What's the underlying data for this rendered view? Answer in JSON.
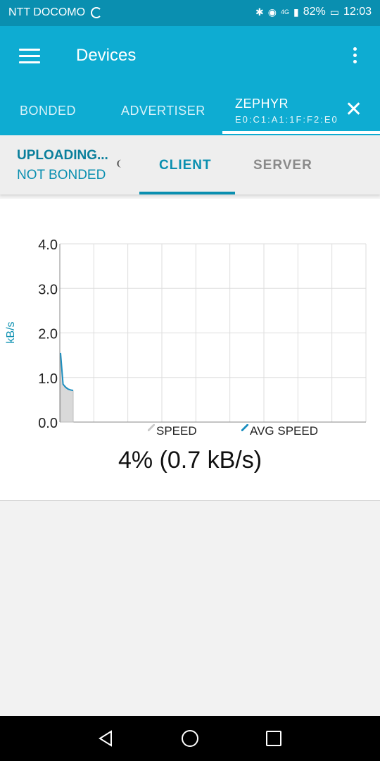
{
  "status_bar": {
    "carrier": "NTT DOCOMO",
    "network": "4G",
    "battery": "82%",
    "time": "12:03"
  },
  "app_bar": {
    "title": "Devices",
    "tabs": [
      {
        "label": "BONDED"
      },
      {
        "label": "ADVERTISER"
      },
      {
        "label": "ZEPHYR",
        "address": "E0:C1:A1:1F:F2:E0"
      }
    ]
  },
  "sub_bar": {
    "upload_status": "UPLOADING...",
    "bond_status": "NOT BONDED",
    "tabs": [
      {
        "label": "CLIENT"
      },
      {
        "label": "SERVER"
      }
    ]
  },
  "chart_data": {
    "type": "line",
    "title": "",
    "xlabel": "",
    "ylabel": "kB/s",
    "ylim": [
      0,
      4
    ],
    "y_ticks": [
      "0.0",
      "1.0",
      "2.0",
      "3.0",
      "4.0"
    ],
    "grid": true,
    "legend": "bottom",
    "series": [
      {
        "name": "SPEED",
        "color": "#c8c8c8",
        "values": [
          1.5,
          0.85,
          0.8,
          0.75,
          0.72,
          0.7
        ]
      },
      {
        "name": "AVG SPEED",
        "color": "#1c8fc0",
        "values": [
          1.55,
          0.85,
          0.78,
          0.74,
          0.72,
          0.71
        ]
      }
    ]
  },
  "progress": {
    "text": "4% (0.7 kB/s)",
    "percent": 4
  },
  "colors": {
    "primary": "#0eacd2",
    "primary_dark": "#0a8fb0",
    "accent": "#0a8fb0"
  }
}
